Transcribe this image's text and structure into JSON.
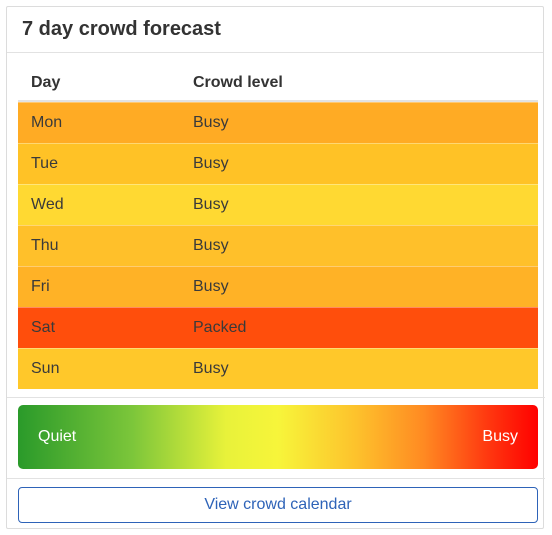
{
  "card": {
    "title": "7 day crowd forecast"
  },
  "table": {
    "headers": {
      "day": "Day",
      "level": "Crowd level"
    },
    "rows": [
      {
        "day": "Mon",
        "level": "Busy",
        "color": "#ffab24"
      },
      {
        "day": "Tue",
        "level": "Busy",
        "color": "#ffc226"
      },
      {
        "day": "Wed",
        "level": "Busy",
        "color": "#ffd932"
      },
      {
        "day": "Thu",
        "level": "Busy",
        "color": "#ffc02a"
      },
      {
        "day": "Fri",
        "level": "Busy",
        "color": "#ffb226"
      },
      {
        "day": "Sat",
        "level": "Packed",
        "color": "#ff4e0c"
      },
      {
        "day": "Sun",
        "level": "Busy",
        "color": "#ffc82a"
      }
    ]
  },
  "legend": {
    "low_label": "Quiet",
    "high_label": "Busy"
  },
  "actions": {
    "calendar_button": "View crowd calendar"
  }
}
